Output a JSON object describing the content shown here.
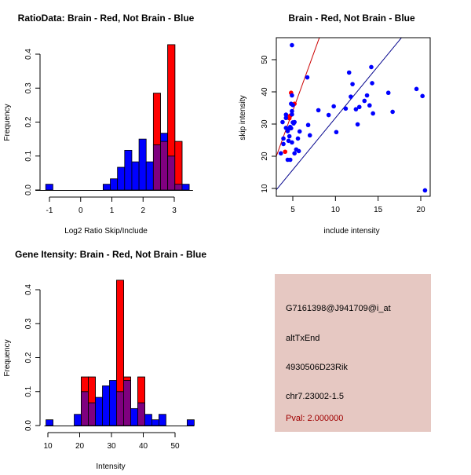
{
  "colors": {
    "red": "#ff0000",
    "blue": "#0000ff",
    "overlap": "#7f007f",
    "panel_bg": "#e6c8c2",
    "pval": "#a00000",
    "red_line": "#cc0000",
    "blue_line": "#00008b"
  },
  "chart_data": [
    {
      "id": "ratio",
      "type": "bar",
      "title": "RatioData: Brain - Red, Not Brain - Blue",
      "xlabel": "Log2 Ratio Skip/Include",
      "ylabel": "Frequency",
      "xlim": [
        -1.4,
        3.6
      ],
      "ylim": [
        0,
        0.43
      ],
      "xticks": [
        -1,
        0,
        1,
        2,
        3
      ],
      "xtick_labels": [
        "-1",
        "0",
        "1",
        "2",
        "3"
      ],
      "yticks": [
        0,
        0.1,
        0.2,
        0.3,
        0.4
      ],
      "ytick_labels": [
        "0.0",
        "0.1",
        "0.2",
        "0.3",
        "0.4"
      ],
      "bin_width": 0.23,
      "bin_starts": [
        -1.12,
        0.72,
        0.95,
        1.18,
        1.41,
        1.64,
        1.87,
        2.1,
        2.33,
        2.56,
        2.79,
        3.02,
        3.25
      ],
      "series": [
        {
          "name": "Brain",
          "color": "red",
          "values": [
            0,
            0,
            0,
            0,
            0,
            0,
            0,
            0,
            0.285,
            0.143,
            0.428,
            0.143,
            0
          ]
        },
        {
          "name": "Not Brain",
          "color": "blue",
          "values": [
            0.017,
            0.017,
            0.033,
            0.067,
            0.117,
            0.083,
            0.15,
            0.083,
            0.133,
            0.167,
            0.1,
            0.017,
            0.017
          ]
        }
      ]
    },
    {
      "id": "scatter",
      "type": "scatter",
      "title": "Brain - Red, Not Brain - Blue",
      "xlabel": "include intensity",
      "ylabel": "skip intensity",
      "xlim": [
        3.07,
        21.06
      ],
      "ylim": [
        7.6,
        56.8
      ],
      "xticks": [
        5,
        10,
        15,
        20
      ],
      "xtick_labels": [
        "5",
        "10",
        "15",
        "20"
      ],
      "yticks": [
        10,
        20,
        30,
        40,
        50
      ],
      "ytick_labels": [
        "10",
        "20",
        "30",
        "40",
        "50"
      ],
      "lines": [
        {
          "name": "Brain fit",
          "color": "red_line",
          "slope": 7.3,
          "intercept": -2.4
        },
        {
          "name": "Not Brain fit",
          "color": "blue_line",
          "slope": 3.22,
          "intercept": -0.3
        }
      ],
      "series": [
        {
          "name": "Brain",
          "color": "red",
          "points": [
            [
              4.8,
              39.7
            ],
            [
              5.2,
              36.3
            ],
            [
              4.5,
              32.3
            ],
            [
              4.7,
              32.6
            ],
            [
              4.4,
              32.1
            ],
            [
              4.6,
              31.8
            ],
            [
              4.1,
              21.4
            ]
          ]
        },
        {
          "name": "Not Brain",
          "color": "blue",
          "points": [
            [
              4.9,
              54.5
            ],
            [
              6.7,
              44.5
            ],
            [
              3.6,
              20.9
            ],
            [
              3.9,
              23.8
            ],
            [
              3.9,
              25.5
            ],
            [
              3.8,
              30.6
            ],
            [
              4.2,
              31.9
            ],
            [
              4.2,
              32.9
            ],
            [
              4.8,
              36.3
            ],
            [
              4.9,
              38.9
            ],
            [
              4.9,
              34.0
            ],
            [
              4.4,
              27.8
            ],
            [
              4.6,
              26.2
            ],
            [
              4.5,
              24.8
            ],
            [
              4.9,
              24.3
            ],
            [
              4.4,
              18.9
            ],
            [
              4.7,
              18.9
            ],
            [
              5.2,
              20.9
            ],
            [
              5.4,
              22.1
            ],
            [
              5.7,
              21.6
            ],
            [
              5.6,
              25.5
            ],
            [
              5.8,
              27.7
            ],
            [
              5.2,
              30.6
            ],
            [
              5.0,
              35.9
            ],
            [
              6.8,
              29.7
            ],
            [
              7.0,
              26.5
            ],
            [
              8.0,
              34.3
            ],
            [
              9.2,
              32.8
            ],
            [
              9.8,
              35.5
            ],
            [
              10.1,
              27.5
            ],
            [
              11.2,
              34.8
            ],
            [
              11.6,
              46.0
            ],
            [
              11.8,
              38.5
            ],
            [
              12.0,
              42.4
            ],
            [
              12.4,
              34.6
            ],
            [
              12.6,
              29.9
            ],
            [
              12.8,
              35.3
            ],
            [
              13.4,
              37.2
            ],
            [
              13.7,
              38.9
            ],
            [
              14.0,
              35.8
            ],
            [
              14.2,
              47.7
            ],
            [
              14.3,
              42.7
            ],
            [
              14.4,
              33.3
            ],
            [
              16.2,
              39.7
            ],
            [
              16.7,
              33.8
            ],
            [
              19.5,
              40.9
            ],
            [
              20.2,
              38.7
            ],
            [
              20.5,
              9.4
            ],
            [
              4.7,
              29.1
            ],
            [
              4.8,
              28.7
            ],
            [
              4.5,
              28.5
            ],
            [
              5.0,
              30.5
            ],
            [
              4.2,
              28.8
            ],
            [
              4.9,
              33.0
            ],
            [
              5.1,
              30.2
            ]
          ]
        }
      ]
    },
    {
      "id": "intensity",
      "type": "bar",
      "title": "Gene Itensity: Brain - Red, Not Brain - Blue",
      "xlabel": "Intensity",
      "ylabel": "Frequency",
      "xlim": [
        9.4,
        56.0
      ],
      "ylim": [
        0,
        0.43
      ],
      "xticks": [
        10,
        20,
        30,
        40,
        50
      ],
      "xtick_labels": [
        "10",
        "20",
        "30",
        "40",
        "50"
      ],
      "yticks": [
        0,
        0.1,
        0.2,
        0.3,
        0.4
      ],
      "ytick_labels": [
        "0.0",
        "0.1",
        "0.2",
        "0.3",
        "0.4"
      ],
      "bin_width": 2.22,
      "bin_starts": [
        9.4,
        11.62,
        13.84,
        16.06,
        18.28,
        20.5,
        22.72,
        24.94,
        27.16,
        29.38,
        31.6,
        33.82,
        36.04,
        38.26,
        40.48,
        42.7,
        44.92,
        47.14,
        49.36,
        51.58,
        53.8
      ],
      "series": [
        {
          "name": "Brain",
          "color": "red",
          "values": [
            0,
            0,
            0,
            0,
            0,
            0.143,
            0.143,
            0,
            0,
            0,
            0.428,
            0.143,
            0,
            0.143,
            0,
            0,
            0,
            0,
            0,
            0,
            0
          ]
        },
        {
          "name": "Not Brain",
          "color": "blue",
          "values": [
            0.017,
            0,
            0,
            0,
            0.033,
            0.1,
            0.067,
            0.083,
            0.117,
            0.133,
            0.1,
            0.133,
            0.05,
            0.067,
            0.033,
            0.017,
            0.033,
            0,
            0,
            0,
            0.017
          ]
        }
      ]
    }
  ],
  "info_panel": {
    "probe_id": "G7161398@J941709@i_at",
    "event_type": "altTxEnd",
    "gene": "4930506D23Rik",
    "location": "chr7.23002-1.5",
    "pval": "Pval: 2.000000"
  }
}
